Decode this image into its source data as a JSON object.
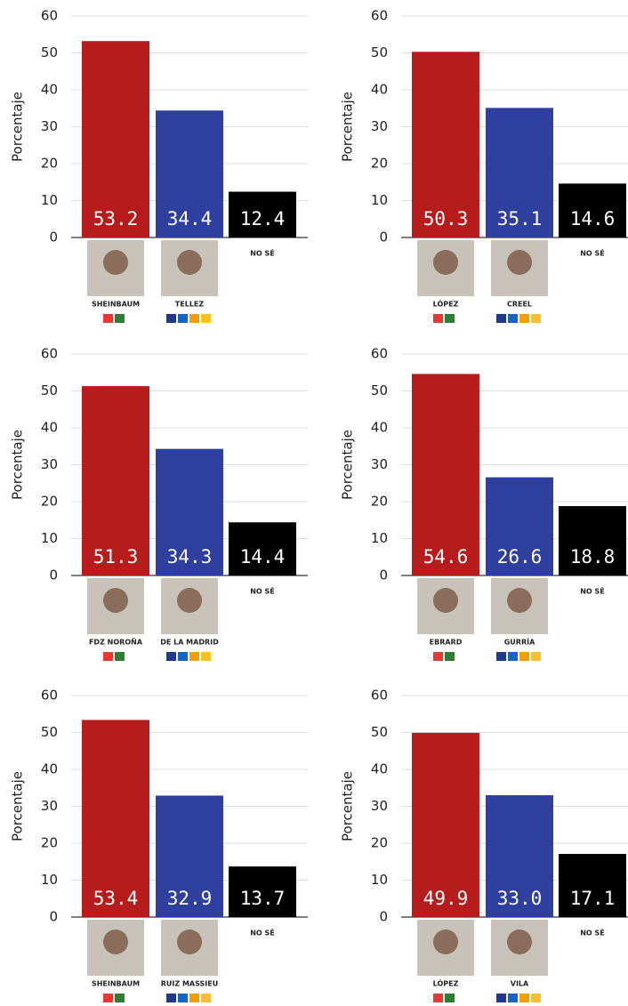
{
  "chart_data": [
    {
      "type": "bar",
      "y_label": "Porcentaje",
      "categories": [
        "SHEINBAUM",
        "TELLEZ",
        "NO SÉ"
      ],
      "values": [
        53.2,
        34.4,
        12.4
      ],
      "value_labels": [
        "53.2",
        "34.4",
        "12.4"
      ],
      "colors": [
        "#b71c1c",
        "#2e3f9e",
        "#000000"
      ],
      "ylim": [
        0,
        60
      ],
      "yticks": [
        0,
        10,
        20,
        30,
        40,
        50,
        60
      ],
      "grid": true
    },
    {
      "type": "bar",
      "y_label": "Porcentaje",
      "categories": [
        "LÓPEZ",
        "CREEL",
        "NO SÉ"
      ],
      "values": [
        50.3,
        35.1,
        14.6
      ],
      "value_labels": [
        "50.3",
        "35.1",
        "14.6"
      ],
      "colors": [
        "#b71c1c",
        "#2e3f9e",
        "#000000"
      ],
      "ylim": [
        0,
        60
      ],
      "yticks": [
        0,
        10,
        20,
        30,
        40,
        50,
        60
      ],
      "grid": true
    },
    {
      "type": "bar",
      "y_label": "Porcentaje",
      "categories": [
        "FDZ NOROÑA",
        "DE LA MADRID",
        "NO SÉ"
      ],
      "values": [
        51.3,
        34.3,
        14.4
      ],
      "value_labels": [
        "51.3",
        "34.3",
        "14.4"
      ],
      "colors": [
        "#b71c1c",
        "#2e3f9e",
        "#000000"
      ],
      "ylim": [
        0,
        60
      ],
      "yticks": [
        0,
        10,
        20,
        30,
        40,
        50,
        60
      ],
      "grid": true
    },
    {
      "type": "bar",
      "y_label": "Porcentaje",
      "categories": [
        "EBRARD",
        "GURRÍA",
        "NO SÉ"
      ],
      "values": [
        54.6,
        26.6,
        18.8
      ],
      "value_labels": [
        "54.6",
        "26.6",
        "18.8"
      ],
      "colors": [
        "#b71c1c",
        "#2e3f9e",
        "#000000"
      ],
      "ylim": [
        0,
        60
      ],
      "yticks": [
        0,
        10,
        20,
        30,
        40,
        50,
        60
      ],
      "grid": true
    },
    {
      "type": "bar",
      "y_label": "Porcentaje",
      "categories": [
        "SHEINBAUM",
        "RUIZ MASSIEU",
        "NO SÉ"
      ],
      "values": [
        53.4,
        32.9,
        13.7
      ],
      "value_labels": [
        "53.4",
        "32.9",
        "13.7"
      ],
      "colors": [
        "#b71c1c",
        "#2e3f9e",
        "#000000"
      ],
      "ylim": [
        0,
        60
      ],
      "yticks": [
        0,
        10,
        20,
        30,
        40,
        50,
        60
      ],
      "grid": true
    },
    {
      "type": "bar",
      "y_label": "Porcentaje",
      "categories": [
        "LÓPEZ",
        "VILA",
        "NO SÉ"
      ],
      "values": [
        49.9,
        33.0,
        17.1
      ],
      "value_labels": [
        "49.9",
        "33.0",
        "17.1"
      ],
      "colors": [
        "#b71c1c",
        "#2e3f9e",
        "#000000"
      ],
      "ylim": [
        0,
        60
      ],
      "yticks": [
        0,
        10,
        20,
        30,
        40,
        50,
        60
      ],
      "grid": true
    }
  ]
}
